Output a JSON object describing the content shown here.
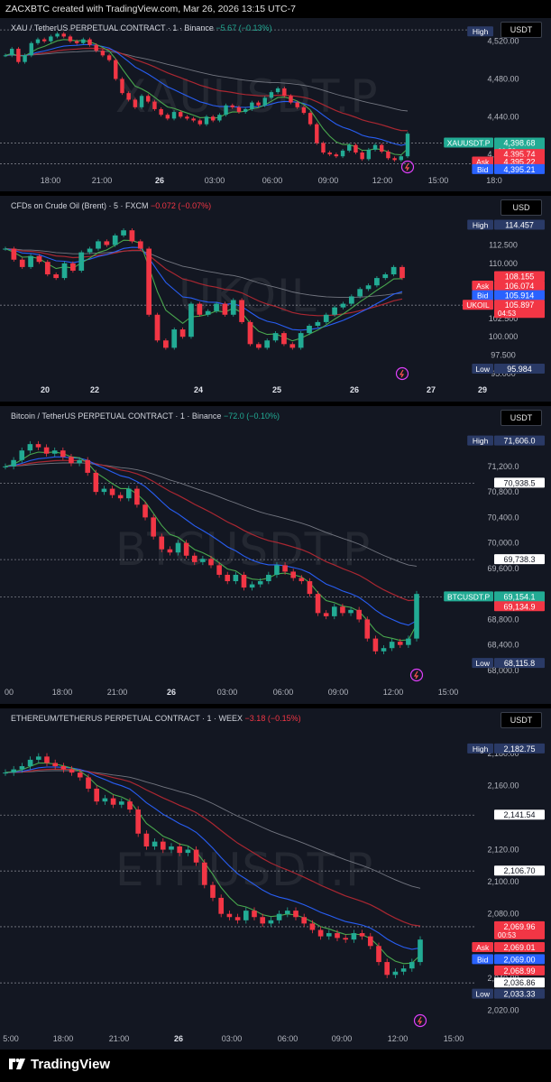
{
  "header": {
    "text": "ZACXBTC created with TradingView.com, Mar 26, 2026 13:15 UTC-7"
  },
  "footer": {
    "brand": "TradingView"
  },
  "colors": {
    "bg": "#131722",
    "up": "#22ab94",
    "down": "#f23645",
    "ask": "#f23645",
    "bid": "#2962ff",
    "high": "#2a3a66",
    "ema_blue": "#2962ff",
    "ema_green": "#4caf50",
    "ema_red": "#b22833",
    "ema_gray": "#787b86"
  },
  "chart_data": [
    {
      "type": "line",
      "title": "XAU / TetherUS PERPETUAL CONTRACT · 1 · Binance",
      "change": "−5.67 (−0.13%)",
      "currency": "USDT",
      "watermark": "XAUUSDT.P",
      "y_ticks": [
        "4,520.00",
        "4,480.00",
        "4,440.00",
        "4,400.00"
      ],
      "y_tick_values": [
        4520,
        4480,
        4440,
        4400
      ],
      "ylim": [
        4380,
        4535
      ],
      "x_ticks": [
        "18:00",
        "21:00",
        "26",
        "03:00",
        "06:00",
        "09:00",
        "12:00",
        "15:00",
        "18:0"
      ],
      "prices": [
        4505,
        4512,
        4498,
        4505,
        4518,
        4522,
        4520,
        4525,
        4528,
        4525,
        4520,
        4518,
        4522,
        4516,
        4510,
        4505,
        4500,
        4480,
        4465,
        4458,
        4450,
        4462,
        4456,
        4448,
        4442,
        4438,
        4445,
        4440,
        4438,
        4436,
        4432,
        4440,
        4436,
        4442,
        4452,
        4450,
        4445,
        4448,
        4455,
        4452,
        4460,
        4466,
        4470,
        4462,
        4455,
        4450,
        4444,
        4432,
        4412,
        4402,
        4400,
        4398,
        4404,
        4410,
        4402,
        4395,
        4405,
        4410,
        4403,
        4396,
        4394,
        4398,
        4422
      ],
      "labels": [
        {
          "kind": "high",
          "text": "High",
          "value": null,
          "price": 4530
        },
        {
          "kind": "price",
          "text": "XAUUSDT.P",
          "value": "4,398.68",
          "sub": "00:53",
          "price": 4412
        },
        {
          "kind": "plain-red",
          "text": "",
          "value": "4,395.74",
          "price": 4400
        },
        {
          "kind": "ask",
          "text": "Ask",
          "value": "4,395.22",
          "price": 4392
        },
        {
          "kind": "bid",
          "text": "Bid",
          "value": "4,395.21",
          "price": 4384
        }
      ],
      "dotted_levels": [
        4532,
        4412,
        4390
      ]
    },
    {
      "type": "line",
      "title": "CFDs on Crude Oil (Brent) · 5 · FXCM",
      "change": "−0.072 (−0.07%)",
      "currency": "USD",
      "watermark": "UKOIL",
      "y_ticks": [
        "112.500",
        "110.000",
        "102.500",
        "100.000",
        "97.500",
        "95.000"
      ],
      "y_tick_values": [
        112.5,
        110.0,
        102.5,
        100.0,
        97.5,
        95.0
      ],
      "ylim": [
        94,
        116
      ],
      "x_ticks": [
        "20",
        "22",
        "24",
        "25",
        "26",
        "27",
        "29"
      ],
      "prices": [
        112.0,
        110.5,
        109.5,
        111.0,
        110.2,
        108.5,
        108.0,
        110.0,
        109.0,
        111.5,
        112.0,
        113.0,
        112.5,
        113.8,
        114.5,
        113.0,
        112.0,
        103.0,
        99.5,
        98.5,
        101.0,
        100.0,
        104.5,
        103.0,
        103.5,
        104.5,
        103.0,
        105.0,
        102.0,
        99.0,
        98.5,
        99.5,
        100.5,
        99.0,
        98.5,
        100.5,
        101.5,
        102.0,
        103.0,
        104.0,
        104.5,
        105.5,
        106.5,
        107.0,
        108.0,
        108.5,
        109.5,
        108.0
      ],
      "labels": [
        {
          "kind": "high",
          "text": "High",
          "value": "114.457",
          "price": 115.2
        },
        {
          "kind": "plain-red",
          "text": "",
          "value": "108.155",
          "price": 108.2
        },
        {
          "kind": "ask",
          "text": "Ask",
          "value": "106.074",
          "price": 106.9
        },
        {
          "kind": "bid",
          "text": "Bid",
          "value": "105.914",
          "price": 105.6
        },
        {
          "kind": "price-red",
          "text": "UKOIL",
          "value": "105.897",
          "sub": "04:53",
          "price": 104.3
        },
        {
          "kind": "low",
          "text": "Low",
          "value": "95.984",
          "price": 95.6
        }
      ],
      "dotted_levels": [
        104.3
      ]
    },
    {
      "type": "line",
      "title": "Bitcoin / TetherUS PERPETUAL CONTRACT · 1 · Binance",
      "change": "−72.0 (−0.10%)",
      "currency": "USDT",
      "watermark": "BTCUSDT.P",
      "y_ticks": [
        "71,200.0",
        "70,800.0",
        "70,400.0",
        "70,000.0",
        "69,600.0",
        "68,800.0",
        "68,400.0",
        "68,000.0"
      ],
      "y_tick_values": [
        71200,
        70800,
        70400,
        70000,
        69600,
        68800,
        68400,
        68000
      ],
      "ylim": [
        67900,
        71750
      ],
      "x_ticks": [
        "00",
        "18:00",
        "21:00",
        "26",
        "03:00",
        "06:00",
        "09:00",
        "12:00",
        "15:00"
      ],
      "prices": [
        71200,
        71300,
        71450,
        71550,
        71500,
        71400,
        71450,
        71350,
        71250,
        71300,
        71100,
        70800,
        70850,
        70750,
        70700,
        70850,
        70600,
        70400,
        70100,
        69900,
        69850,
        70000,
        69800,
        69700,
        69750,
        69650,
        69500,
        69400,
        69500,
        69300,
        69350,
        69400,
        69500,
        69650,
        69550,
        69450,
        69400,
        69200,
        68900,
        68850,
        69000,
        68900,
        68950,
        68800,
        68500,
        68300,
        68350,
        68450,
        68400,
        68500,
        69200
      ],
      "labels": [
        {
          "kind": "high",
          "text": "High",
          "value": "71,606.0",
          "price": 71600
        },
        {
          "kind": "plain",
          "text": "",
          "value": "70,938.5",
          "price": 70938
        },
        {
          "kind": "plain",
          "text": "",
          "value": "69,738.3",
          "price": 69738
        },
        {
          "kind": "price",
          "text": "BTCUSDT.P",
          "value": "69,154.1",
          "sub": "00:53",
          "price": 69154
        },
        {
          "kind": "plain-red",
          "text": "",
          "value": "69,134.9",
          "price": 69000
        },
        {
          "kind": "low",
          "text": "Low",
          "value": "68,115.8",
          "price": 68110
        }
      ],
      "dotted_levels": [
        70938,
        69738,
        69154
      ]
    },
    {
      "type": "line",
      "title": "ETHEREUM/TETHERUS PERPETUAL CONTRACT · 1 · WEEX",
      "change": "−3.18 (−0.15%)",
      "currency": "USDT",
      "watermark": "ETHUSDT.P",
      "y_ticks": [
        "2,180.00",
        "2,160.00",
        "2,120.00",
        "2,100.00",
        "2,080.00",
        "2,040.00",
        "2,020.00"
      ],
      "y_tick_values": [
        2180,
        2160,
        2120,
        2100,
        2080,
        2040,
        2020
      ],
      "ylim": [
        2018,
        2190
      ],
      "x_ticks": [
        "5:00",
        "18:00",
        "21:00",
        "26",
        "03:00",
        "06:00",
        "09:00",
        "12:00",
        "15:00"
      ],
      "prices": [
        2168,
        2170,
        2172,
        2176,
        2178,
        2174,
        2172,
        2170,
        2168,
        2165,
        2158,
        2150,
        2152,
        2148,
        2150,
        2145,
        2130,
        2122,
        2125,
        2120,
        2122,
        2118,
        2120,
        2112,
        2098,
        2090,
        2080,
        2078,
        2076,
        2082,
        2078,
        2074,
        2076,
        2080,
        2082,
        2078,
        2074,
        2070,
        2066,
        2068,
        2065,
        2064,
        2068,
        2066,
        2060,
        2050,
        2042,
        2044,
        2046,
        2050,
        2064
      ],
      "labels": [
        {
          "kind": "high",
          "text": "High",
          "value": "2,182.75",
          "price": 2182.75
        },
        {
          "kind": "plain",
          "text": "",
          "value": "2,141.54",
          "price": 2141.54
        },
        {
          "kind": "plain",
          "text": "",
          "value": "2,106.70",
          "price": 2106.7
        },
        {
          "kind": "price-red",
          "text": "",
          "value": "2,069.96",
          "sub": "00:53",
          "price": 2072
        },
        {
          "kind": "ask",
          "text": "Ask",
          "value": "2,069.01",
          "price": 2059
        },
        {
          "kind": "bid",
          "text": "Bid",
          "value": "2,069.00",
          "price": 2051.5
        },
        {
          "kind": "plain-red",
          "text": "",
          "value": "2,068.99",
          "price": 2044.5
        },
        {
          "kind": "plain",
          "text": "",
          "value": "2,036.86",
          "price": 2037
        },
        {
          "kind": "low",
          "text": "Low",
          "value": "2,033.33",
          "price": 2030
        }
      ],
      "dotted_levels": [
        2141.54,
        2106.7,
        2072,
        2037
      ]
    }
  ]
}
